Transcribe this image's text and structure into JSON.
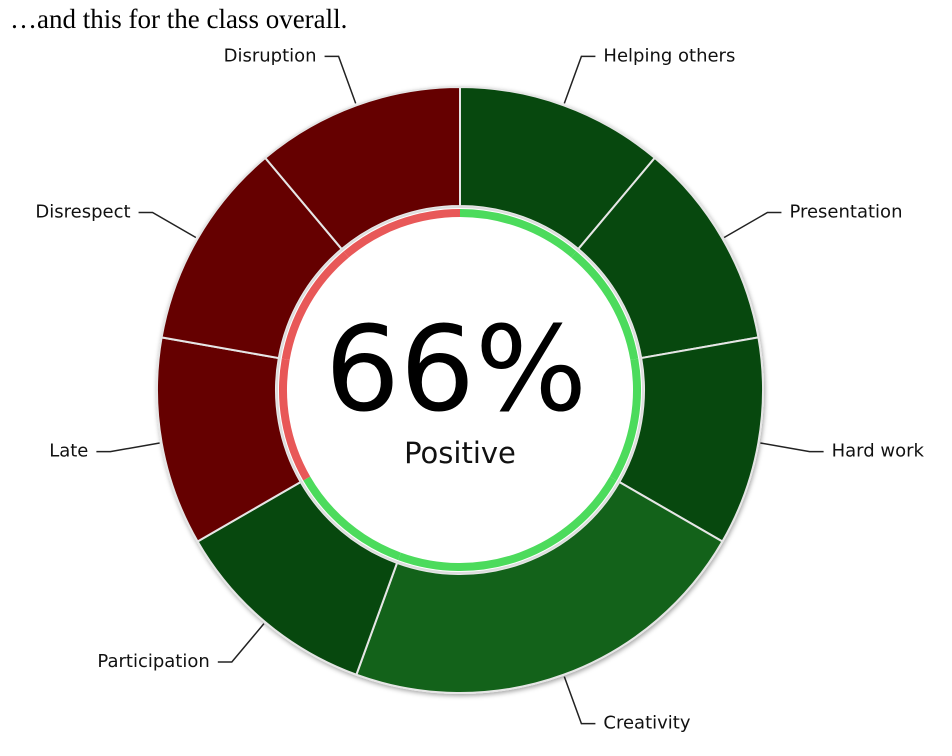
{
  "chart_data": {
    "type": "donut",
    "caption": "…and this for the class overall.",
    "center_value": "66%",
    "center_label": "Positive",
    "categories": [
      "Helping others",
      "Presentation",
      "Hard work",
      "Creativity",
      "Participation",
      "Late",
      "Disrespect",
      "Disruption"
    ],
    "values": [
      1,
      1,
      1,
      2,
      1,
      1,
      1,
      1
    ],
    "colors": [
      "#07480e",
      "#07480e",
      "#07480e",
      "#13621a",
      "#07480e",
      "#650000",
      "#650000",
      "#650000"
    ],
    "ring_colors": [
      "#4cdb5c",
      "#4cdb5c",
      "#4cdb5c",
      "#4cdb5c",
      "#4cdb5c",
      "#e85858",
      "#e85858",
      "#e85858"
    ]
  }
}
